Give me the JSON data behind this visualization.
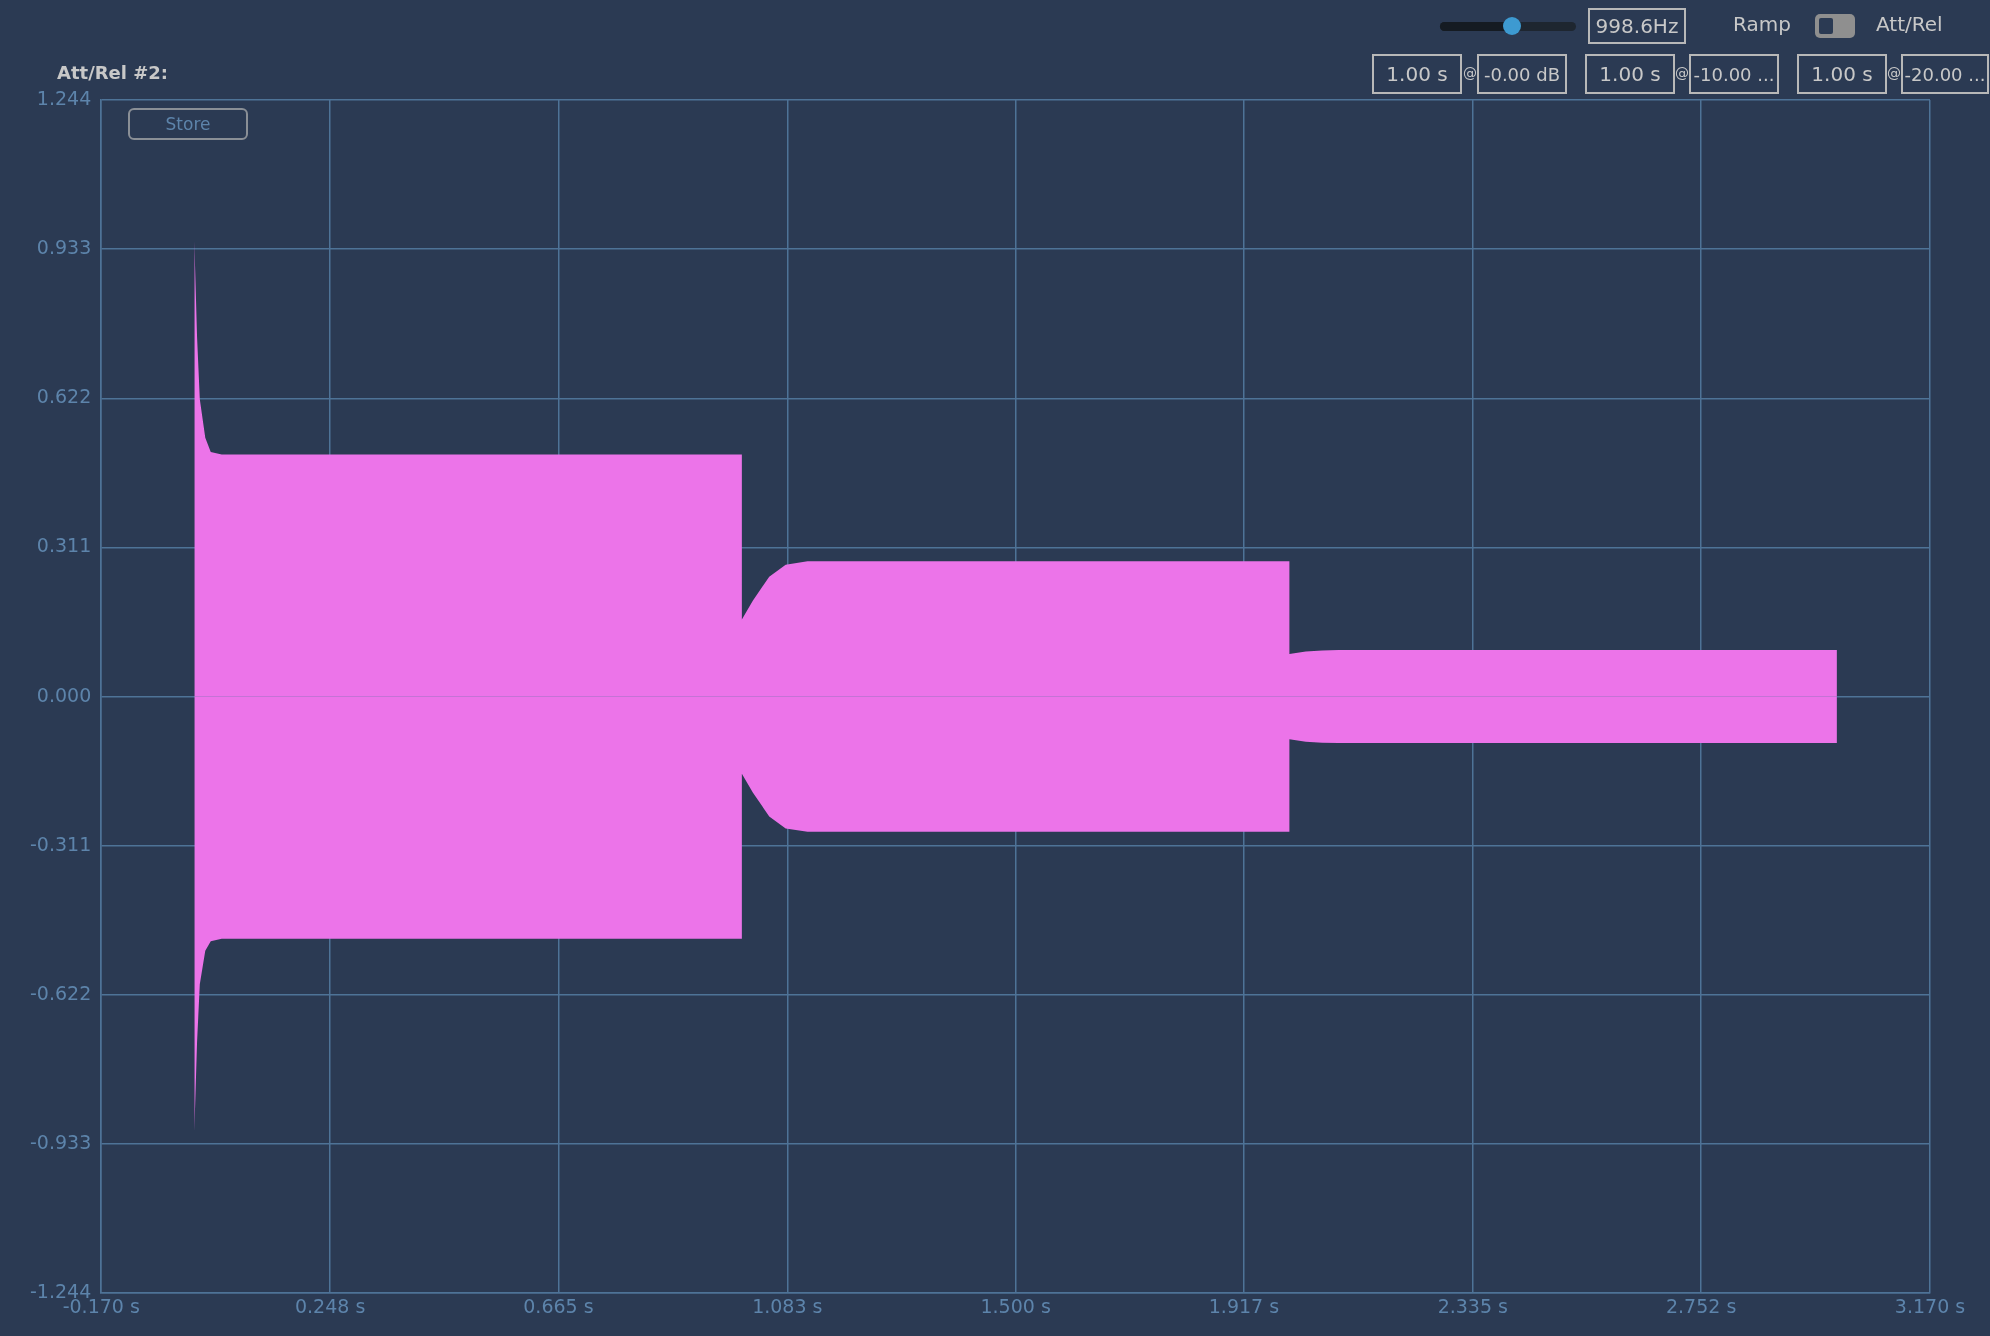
{
  "chart_data": {
    "type": "area",
    "grid": true,
    "legend": false,
    "marker": "none",
    "xlim": [
      -0.17,
      3.17
    ],
    "xticks": [
      {
        "value": -0.17,
        "label": "-0.170 s"
      },
      {
        "value": 0.248,
        "label": "0.248 s"
      },
      {
        "value": 0.665,
        "label": "0.665 s"
      },
      {
        "value": 1.083,
        "label": "1.083 s"
      },
      {
        "value": 1.5,
        "label": "1.500 s"
      },
      {
        "value": 1.917,
        "label": "1.917 s"
      },
      {
        "value": 2.335,
        "label": "2.335 s"
      },
      {
        "value": 2.752,
        "label": "2.752 s"
      },
      {
        "value": 3.17,
        "label": "3.170 s"
      }
    ],
    "ylim": [
      -1.244,
      1.244
    ],
    "yticks": [
      {
        "value": -1.244,
        "label": "-1.244"
      },
      {
        "value": -0.933,
        "label": "-0.933"
      },
      {
        "value": -0.622,
        "label": "-0.622"
      },
      {
        "value": -0.311,
        "label": "-0.311"
      },
      {
        "value": 0,
        "label": "0.000"
      },
      {
        "value": 0.311,
        "label": "0.311"
      },
      {
        "value": 0.622,
        "label": "0.622"
      },
      {
        "value": 0.933,
        "label": "0.933"
      },
      {
        "value": 1.244,
        "label": "1.244"
      }
    ],
    "x": [
      0,
      0,
      0.005,
      0.01,
      0.02,
      0.03,
      0.05,
      1.0,
      1.0,
      1.02,
      1.05,
      1.08,
      1.12,
      2.0,
      2.0,
      2.03,
      2.06,
      2.09,
      3.0,
      3.0
    ],
    "series": [
      {
        "color": "#ec74e9",
        "values": [
          0,
          0.95,
          0.75,
          0.62,
          0.54,
          0.51,
          0.505,
          0.505,
          0.161,
          0.2,
          0.25,
          0.275,
          0.282,
          0.282,
          0.089,
          0.094,
          0.096,
          0.097,
          0.097,
          0
        ]
      },
      {
        "color": "#ec74e9",
        "values": [
          0,
          -0.908,
          -0.72,
          -0.6,
          -0.53,
          -0.51,
          -0.505,
          -0.505,
          -0.161,
          -0.2,
          -0.25,
          -0.275,
          -0.282,
          -0.282,
          -0.089,
          -0.094,
          -0.096,
          -0.097,
          -0.097,
          0
        ]
      }
    ],
    "annotations": [
      "Att/Rel #2:",
      "Store",
      "998.6Hz",
      "Ramp",
      "Att/Rel",
      "1.00 s",
      "@",
      "-0.00 dB",
      "1.00 s",
      "@",
      "-10.00 ...",
      "1.00 s",
      "@",
      "-20.00 ..."
    ]
  }
}
